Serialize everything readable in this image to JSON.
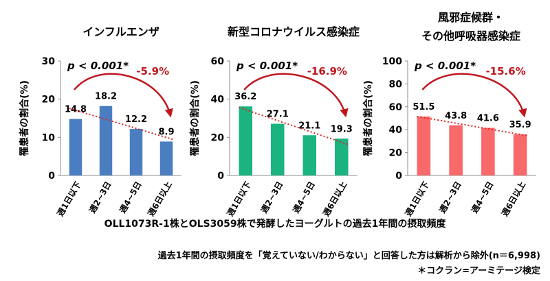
{
  "colors": {
    "bar_influenza": "#4a7ec1",
    "bar_covid": "#1bb37f",
    "bar_other": "#f8696b",
    "trend": "#e02020",
    "arrow": "#c0171f",
    "change_text": "#c0171f",
    "axis": "#8c8c8c"
  },
  "chart_data": [
    {
      "type": "bar",
      "title": "インフルエンザ",
      "ylabel": "罹患者の割合(%)",
      "categories": [
        "週1日以下",
        "週2~3日",
        "週4~5日",
        "週6日以上"
      ],
      "values": [
        14.8,
        18.2,
        12.2,
        8.9
      ],
      "ylim": [
        0,
        30
      ],
      "yticks": [
        0,
        10,
        20,
        30
      ],
      "pvalue": "p < 0.001*",
      "change": "-5.9%",
      "trendline": "dotted linear trend",
      "grid": false
    },
    {
      "type": "bar",
      "title": "新型コロナウイルス感染症",
      "ylabel": "罹患者の割合(%)",
      "categories": [
        "週1日以下",
        "週2~3日",
        "週4~5日",
        "週6日以上"
      ],
      "values": [
        36.2,
        27.1,
        21.1,
        19.3
      ],
      "ylim": [
        0,
        60
      ],
      "yticks": [
        0,
        20,
        40,
        60
      ],
      "pvalue": "p < 0.001*",
      "change": "-16.9%",
      "trendline": "dotted linear trend",
      "grid": false
    },
    {
      "type": "bar",
      "title_lines": [
        "風邪症候群・",
        "その他呼吸器感染症"
      ],
      "ylabel": "罹患者の割合(%)",
      "categories": [
        "週1日以下",
        "週2~3日",
        "週4~5日",
        "週6日以上"
      ],
      "values": [
        51.5,
        43.8,
        41.6,
        35.9
      ],
      "ylim": [
        0,
        100
      ],
      "yticks": [
        0,
        20,
        40,
        60,
        80,
        100
      ],
      "pvalue": "p < 0.001*",
      "change": "-15.6%",
      "trendline": "dotted linear trend",
      "grid": false
    }
  ],
  "footer": {
    "xlabel": "OLL1073R-1株とOLS3059株で発酵したヨーグルトの過去1年間の摂取頻度",
    "note": "過去1年間の摂取頻度を「覚えていない/わからない」と回答した方は解析から除外(n＝6,998)",
    "test": "＊コクラン=アーミテージ検定"
  }
}
